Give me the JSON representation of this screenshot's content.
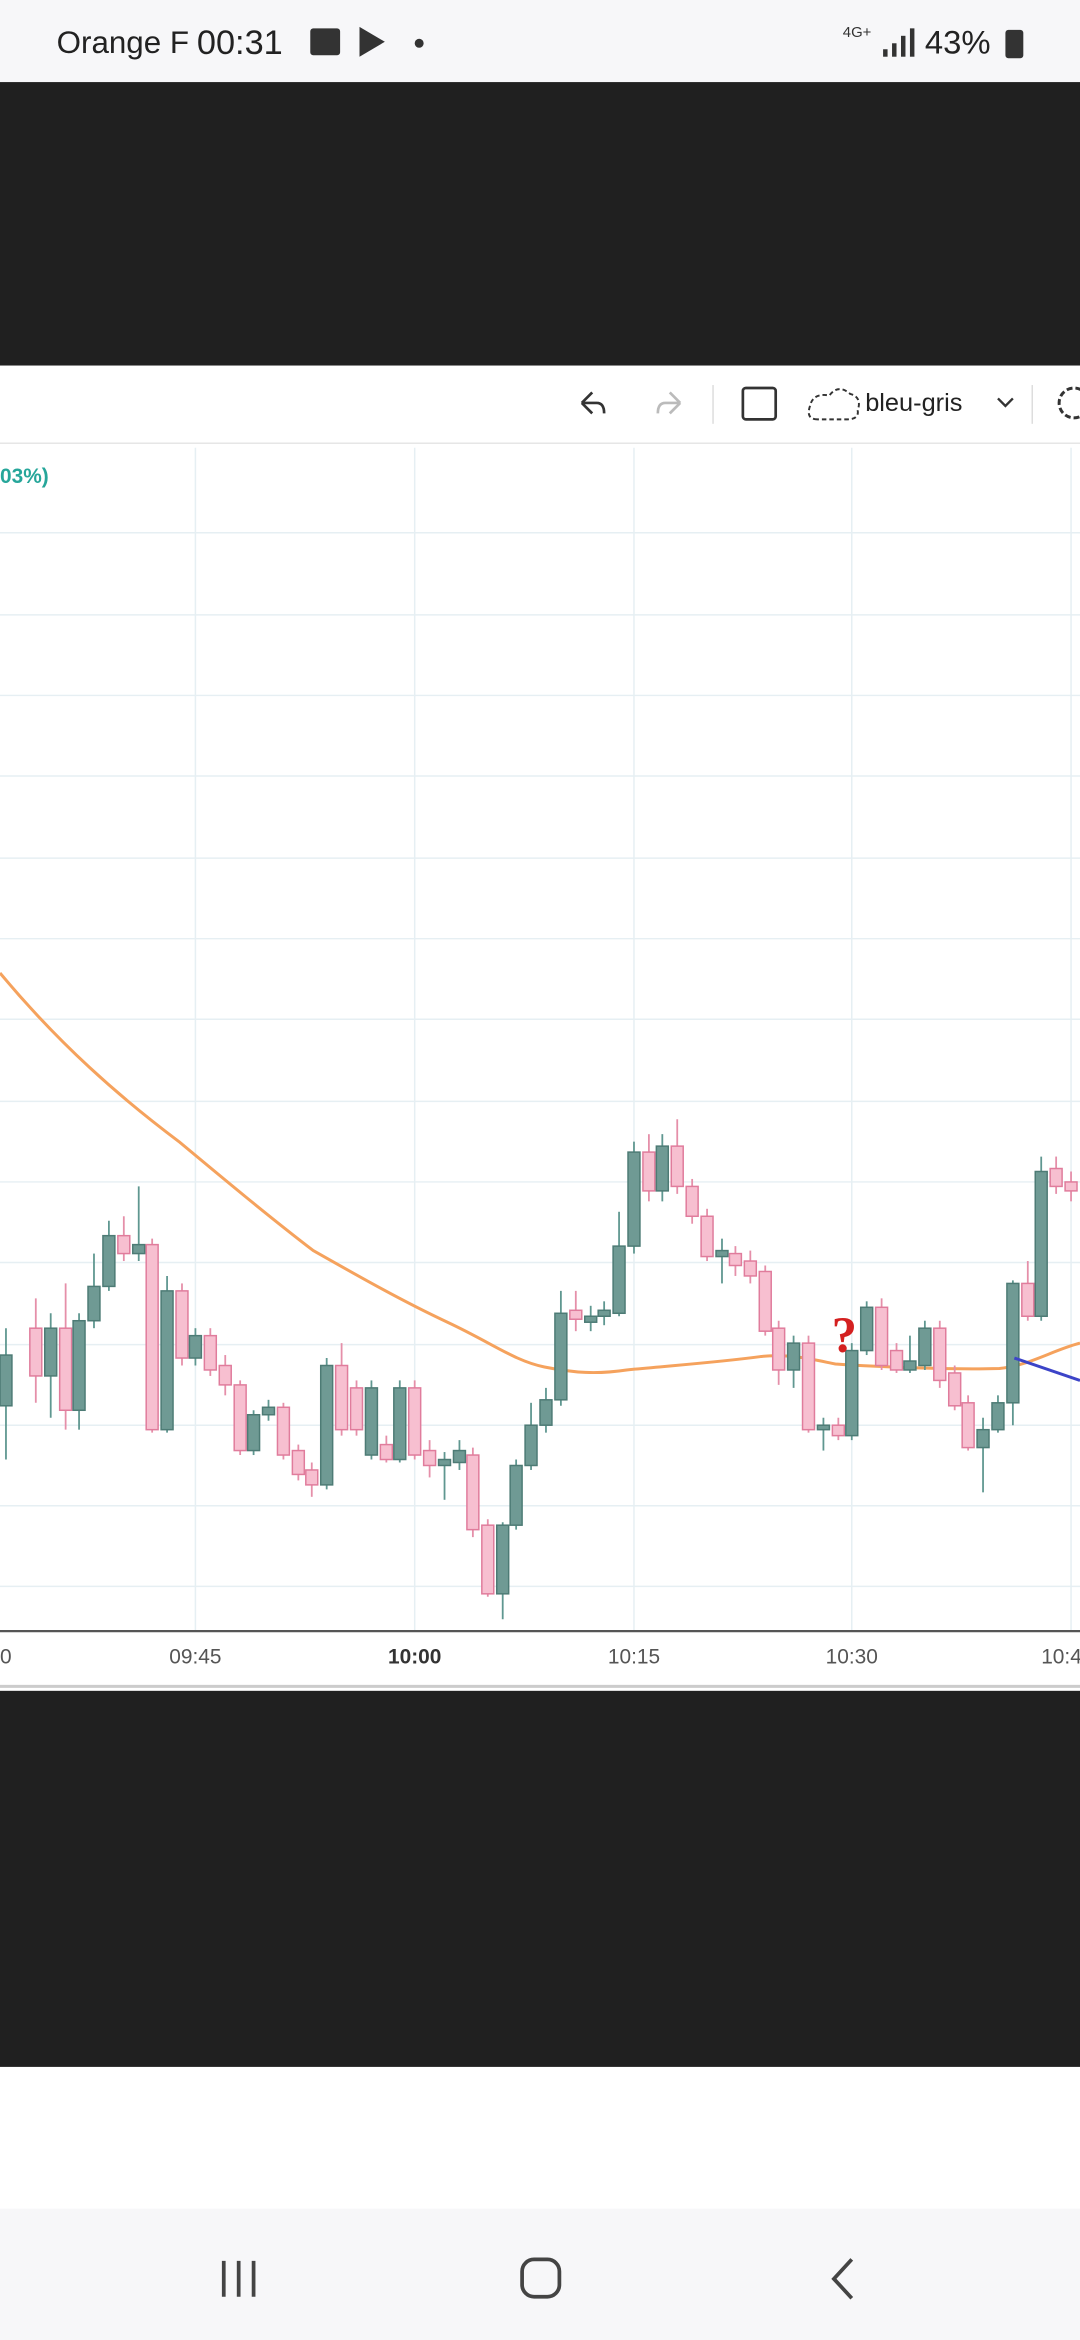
{
  "status_bar": {
    "carrier": "Orange F",
    "time": "00:31",
    "network": "4G+",
    "battery": "43%"
  },
  "toolbar": {
    "theme": "bleu-gris"
  },
  "chart": {
    "legend_fragment": "03%)",
    "annotation": "?",
    "x_axis_labels": [
      "0",
      "09:45",
      "10:00",
      "10:15",
      "10:30",
      "10:4"
    ]
  }
}
